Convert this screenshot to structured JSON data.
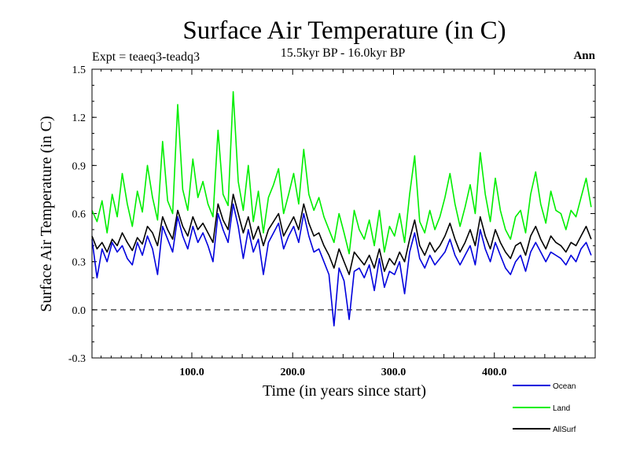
{
  "chart_data": {
    "type": "line",
    "title": "Surface Air Temperature (in C)",
    "subtitle": "15.5kyr BP - 16.0kyr BP",
    "experiment_label": "Expt = teaeq3-teadq3",
    "season_label": "Ann",
    "xlabel": "Time (in years since start)",
    "ylabel": "Surface Air Temperature (in C)",
    "xlim": [
      1,
      500
    ],
    "ylim": [
      -0.3,
      1.5
    ],
    "x_ticks": [
      100,
      200,
      300,
      400
    ],
    "x_tick_labels": [
      "100.0",
      "200.0",
      "300.0",
      "400.0"
    ],
    "y_ticks": [
      -0.3,
      0.0,
      0.3,
      0.6,
      0.9,
      1.2,
      1.5
    ],
    "y_tick_labels": [
      "-0.3",
      "0.0",
      "0.3",
      "0.6",
      "0.9",
      "1.2",
      "1.5"
    ],
    "reference_line": 0.0,
    "legend_position": "below-right",
    "x_step": 5,
    "x_start": 1,
    "series": [
      {
        "name": "Land",
        "color": "#00ee00",
        "values": [
          0.62,
          0.55,
          0.68,
          0.48,
          0.72,
          0.58,
          0.85,
          0.66,
          0.52,
          0.74,
          0.61,
          0.9,
          0.7,
          0.56,
          1.05,
          0.68,
          0.6,
          1.28,
          0.75,
          0.62,
          0.94,
          0.7,
          0.8,
          0.66,
          0.58,
          1.12,
          0.72,
          0.65,
          1.36,
          0.8,
          0.62,
          0.9,
          0.55,
          0.74,
          0.48,
          0.7,
          0.78,
          0.88,
          0.6,
          0.72,
          0.85,
          0.66,
          1.0,
          0.72,
          0.62,
          0.7,
          0.58,
          0.5,
          0.42,
          0.6,
          0.48,
          0.35,
          0.62,
          0.5,
          0.44,
          0.56,
          0.4,
          0.62,
          0.36,
          0.52,
          0.46,
          0.6,
          0.42,
          0.72,
          0.96,
          0.55,
          0.48,
          0.62,
          0.5,
          0.58,
          0.7,
          0.85,
          0.66,
          0.52,
          0.64,
          0.78,
          0.6,
          0.98,
          0.72,
          0.55,
          0.82,
          0.62,
          0.5,
          0.44,
          0.58,
          0.62,
          0.48,
          0.72,
          0.86,
          0.66,
          0.54,
          0.74,
          0.62,
          0.6,
          0.5,
          0.62,
          0.58,
          0.7,
          0.82,
          0.64
        ]
      },
      {
        "name": "AllSurf",
        "color": "#000000",
        "values": [
          0.46,
          0.38,
          0.42,
          0.36,
          0.44,
          0.4,
          0.48,
          0.42,
          0.37,
          0.45,
          0.41,
          0.52,
          0.48,
          0.4,
          0.58,
          0.5,
          0.44,
          0.62,
          0.52,
          0.46,
          0.58,
          0.5,
          0.54,
          0.48,
          0.42,
          0.66,
          0.56,
          0.5,
          0.72,
          0.6,
          0.48,
          0.58,
          0.44,
          0.52,
          0.4,
          0.5,
          0.55,
          0.6,
          0.46,
          0.52,
          0.58,
          0.5,
          0.66,
          0.54,
          0.46,
          0.48,
          0.4,
          0.34,
          0.26,
          0.38,
          0.3,
          0.22,
          0.36,
          0.32,
          0.28,
          0.34,
          0.26,
          0.38,
          0.24,
          0.32,
          0.28,
          0.36,
          0.3,
          0.44,
          0.56,
          0.4,
          0.34,
          0.42,
          0.36,
          0.4,
          0.46,
          0.54,
          0.44,
          0.36,
          0.42,
          0.5,
          0.4,
          0.58,
          0.46,
          0.38,
          0.5,
          0.42,
          0.36,
          0.32,
          0.4,
          0.42,
          0.34,
          0.46,
          0.52,
          0.44,
          0.38,
          0.46,
          0.42,
          0.4,
          0.36,
          0.42,
          0.4,
          0.46,
          0.52,
          0.44
        ]
      },
      {
        "name": "Ocean",
        "color": "#0000dd",
        "values": [
          0.44,
          0.2,
          0.38,
          0.3,
          0.42,
          0.36,
          0.4,
          0.32,
          0.28,
          0.42,
          0.34,
          0.46,
          0.38,
          0.22,
          0.52,
          0.44,
          0.36,
          0.58,
          0.46,
          0.38,
          0.52,
          0.42,
          0.48,
          0.4,
          0.3,
          0.6,
          0.5,
          0.42,
          0.66,
          0.52,
          0.32,
          0.5,
          0.36,
          0.44,
          0.22,
          0.42,
          0.48,
          0.54,
          0.38,
          0.46,
          0.52,
          0.42,
          0.6,
          0.46,
          0.36,
          0.38,
          0.3,
          0.22,
          -0.1,
          0.26,
          0.18,
          -0.06,
          0.24,
          0.26,
          0.2,
          0.28,
          0.12,
          0.32,
          0.14,
          0.24,
          0.22,
          0.3,
          0.1,
          0.36,
          0.48,
          0.32,
          0.26,
          0.34,
          0.28,
          0.32,
          0.36,
          0.44,
          0.34,
          0.28,
          0.34,
          0.4,
          0.28,
          0.5,
          0.38,
          0.3,
          0.42,
          0.34,
          0.26,
          0.22,
          0.3,
          0.34,
          0.24,
          0.36,
          0.42,
          0.36,
          0.3,
          0.36,
          0.34,
          0.32,
          0.28,
          0.34,
          0.3,
          0.38,
          0.42,
          0.34
        ]
      }
    ],
    "legend": [
      {
        "name": "Ocean",
        "color": "#0000dd"
      },
      {
        "name": "Land",
        "color": "#00ee00"
      },
      {
        "name": "AllSurf",
        "color": "#000000"
      }
    ]
  }
}
